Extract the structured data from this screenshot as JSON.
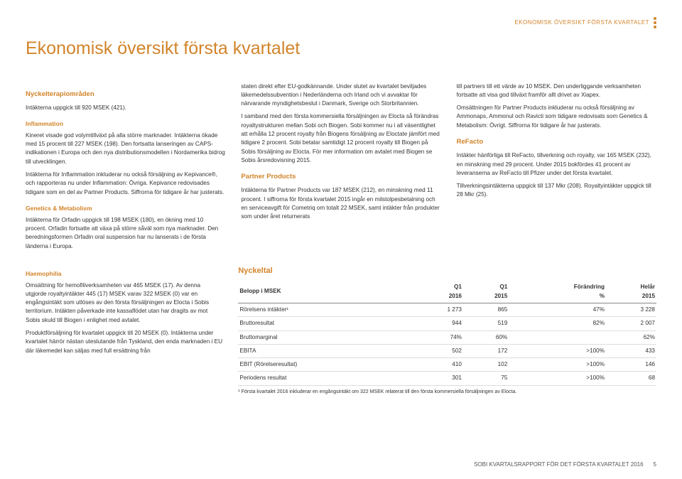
{
  "header_label": "EKONOMISK ÖVERSIKT FÖRSTA KVARTALET",
  "title": "Ekonomisk översikt första kvartalet",
  "col1": {
    "h_focus": "Nyckelterapiområden",
    "p1": "Intäkterna uppgick till 920 MSEK (421).",
    "h_infl": "Inflammation",
    "p2": "Kineret visade god volymtillväxt på alla större marknader. Intäkterna ökade med 15 procent till 227 MSEK (198). Den fortsatta lanseringen av CAPS-indikationen i Europa och den nya distributionsmodellen i Nordamerika bidrog till utvecklingen.",
    "p3": "Intäkterna för Inflammation inkluderar nu också försäljning av Kepivance®, och rapporteras nu under Inflammation: Övriga. Kepivance redovisades tidigare som en del av Partner Products. Siffrorna för tidigare år har justerats.",
    "h_gm": "Genetics & Metabolism",
    "p4": "Intäkterna för Orfadin uppgick till 198 MSEK (180), en ökning med 10 procent. Orfadin fortsatte att växa på större såväl som nya marknader. Den beredningsformen Orfadin oral suspension har nu lanserats i de första länderna i Europa."
  },
  "col2": {
    "p1": "staten direkt efter EU-godkännande. Under slutet av kvartalet beviljades läkemedelssubvention i Nederländerna och Irland och vi avvaktar för närvarande myndighetsbeslut i Danmark, Sverige och Storbritannien.",
    "p2": "I samband med den första kommersiella försäljningen av Elocta så förändras royaltystrukturen mellan Sobi och Biogen. Sobi kommer nu i all väsentlighet att erhålla 12 procent royalty från Biogens försäljning av Eloctate jämfört med tidigare 2 procent. Sobi betalar samtidigt 12 procent royalty till Biogen på Sobis försäljning av Elocta. För mer information om avtalet med Biogen se Sobis årsredovisning 2015.",
    "h_pp": "Partner Products",
    "p3": "Intäkterna för Partner Products var 187 MSEK (212), en minskning med 11 procent. I siffrorna för första kvartalet 2015 ingår en milstolpesbetalning och en serviceavgift för Cometriq om totalt 22 MSEK, samt intäkter från produkter som under året returnerats"
  },
  "col3": {
    "p1": "till partners till ett värde av 10 MSEK. Den underliggande verksamheten fortsatte att visa god tillväxt framför allt drivet av Xiapex.",
    "p2": "Omsättningen för Partner Products inkluderar nu också försäljning av Ammonaps, Ammonul och Ravicti som tidigare redovisats som Genetics & Metabolism: Övrigt. Siffrorna för tidigare år har justerats.",
    "h_re": "ReFacto",
    "p3": "Intäkter hänförliga till ReFacto, tillverkning och royalty, var 165 MSEK (232), en minskning med 29 procent. Under 2015 bokfördes 41 procent av leveranserna av ReFacto till Pfizer under det första kvartalet.",
    "p4": "Tillverkningsintäkterna uppgick till 137 Mkr (208). Royaltyintäkter uppgick till 28 Mkr (25)."
  },
  "hemo": {
    "h": "Haemophilia",
    "p1": "Omsättning för hemofiliverksamheten var 465 MSEK (17). Av denna utgjorde royaltyintäkter 445 (17) MSEK varav 322 MSEK (0) var en engångsintäkt som utlöses av den första försäljningen av Elocta i Sobis territorium. Intäkten påverkade inte kassaflödet utan har dragits av mot Sobis skuld till Biogen i enlighet med avtalet.",
    "p2": "Produktförsäljning för kvartalet uppgick till 20 MSEK (0). Intäkterna under kvartalet härrör nästan uteslutande från Tyskland, den enda marknaden i EU där läkemedel kan säljas med full ersättning från"
  },
  "table": {
    "title": "Nyckeltal",
    "header_label": "Belopp i MSEK",
    "cols": [
      "Q1 2016",
      "Q1 2015",
      "Förändring %",
      "Helår 2015"
    ],
    "rows": [
      {
        "label": "Rörelsens intäkter¹",
        "c1": "1 273",
        "c2": "865",
        "c3": "47%",
        "c4": "3 228"
      },
      {
        "label": "Bruttoresultat",
        "c1": "944",
        "c2": "519",
        "c3": "82%",
        "c4": "2 007"
      },
      {
        "label": "Bruttomarginal",
        "c1": "74%",
        "c2": "60%",
        "c3": "",
        "c4": "62%"
      },
      {
        "label": "EBITA",
        "c1": "502",
        "c2": "172",
        "c3": ">100%",
        "c4": "433"
      },
      {
        "label": "EBIT (Rörelseresultat)",
        "c1": "410",
        "c2": "102",
        "c3": ">100%",
        "c4": "146"
      },
      {
        "label": "Periodens resultat",
        "c1": "301",
        "c2": "75",
        "c3": ">100%",
        "c4": "68"
      }
    ],
    "footnote": "¹ Första kvartalet 2016 inkluderar en engångsintäkt om 322 MSEK relaterat till den första kommersiella försäljningen av Elocta."
  },
  "footer": {
    "text": "SOBI KVARTALSRAPPORT FÖR DET FÖRSTA KVARTALET 2016",
    "page": "5"
  }
}
